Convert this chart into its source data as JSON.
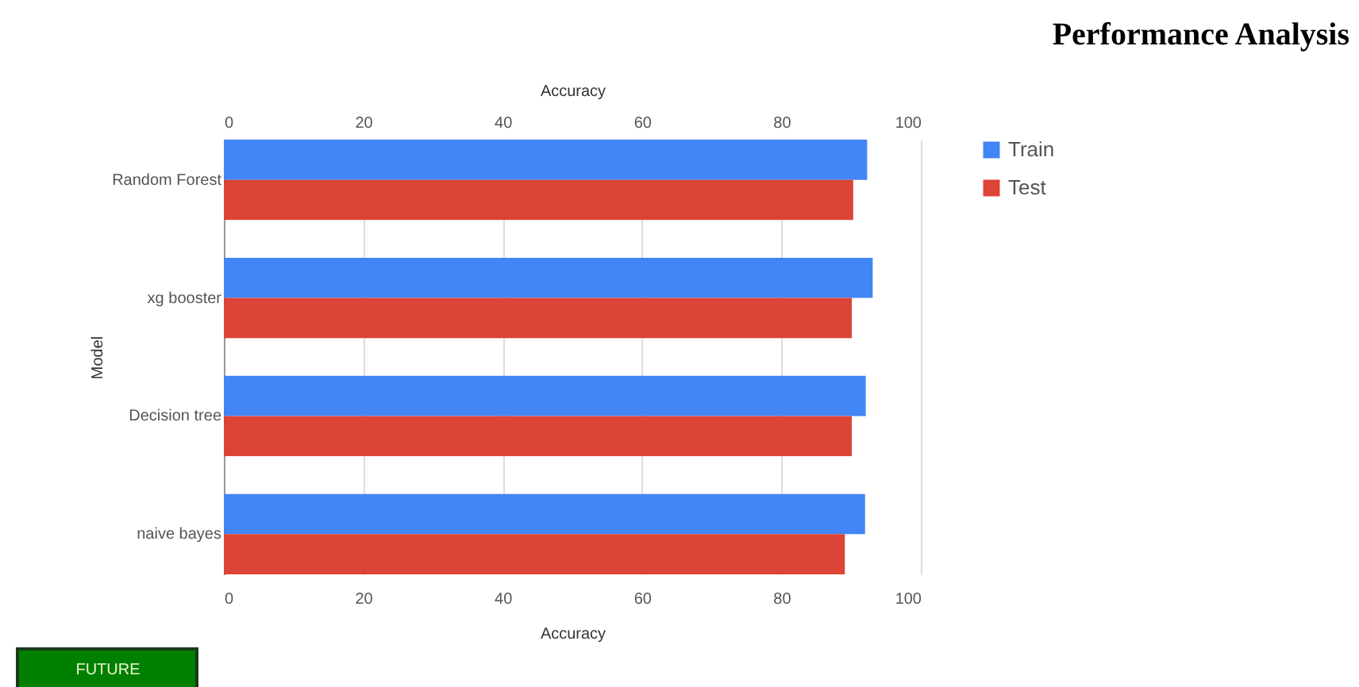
{
  "chart_data": {
    "type": "bar",
    "orientation": "horizontal",
    "title": "Performance Analysis",
    "xlabel": "Accuracy",
    "x2label": "Accuracy",
    "ylabel": "Model",
    "categories": [
      "Random Forest",
      "xg booster",
      "Decision tree",
      "naive bayes"
    ],
    "series": [
      {
        "name": "Train",
        "color": "#4285f4",
        "values": [
          92.3,
          93.1,
          92.1,
          92.0
        ]
      },
      {
        "name": "Test",
        "color": "#db4437",
        "values": [
          90.3,
          90.1,
          90.1,
          89.1
        ]
      }
    ],
    "xlim": [
      0,
      100
    ],
    "xticks": [
      0,
      20,
      40,
      60,
      80,
      100
    ],
    "x2lim": [
      0,
      100
    ],
    "x2ticks": [
      0,
      20,
      40,
      60,
      80,
      100
    ],
    "grid": "x",
    "legend": "right",
    "annotations": [
      "FUTURE"
    ]
  }
}
